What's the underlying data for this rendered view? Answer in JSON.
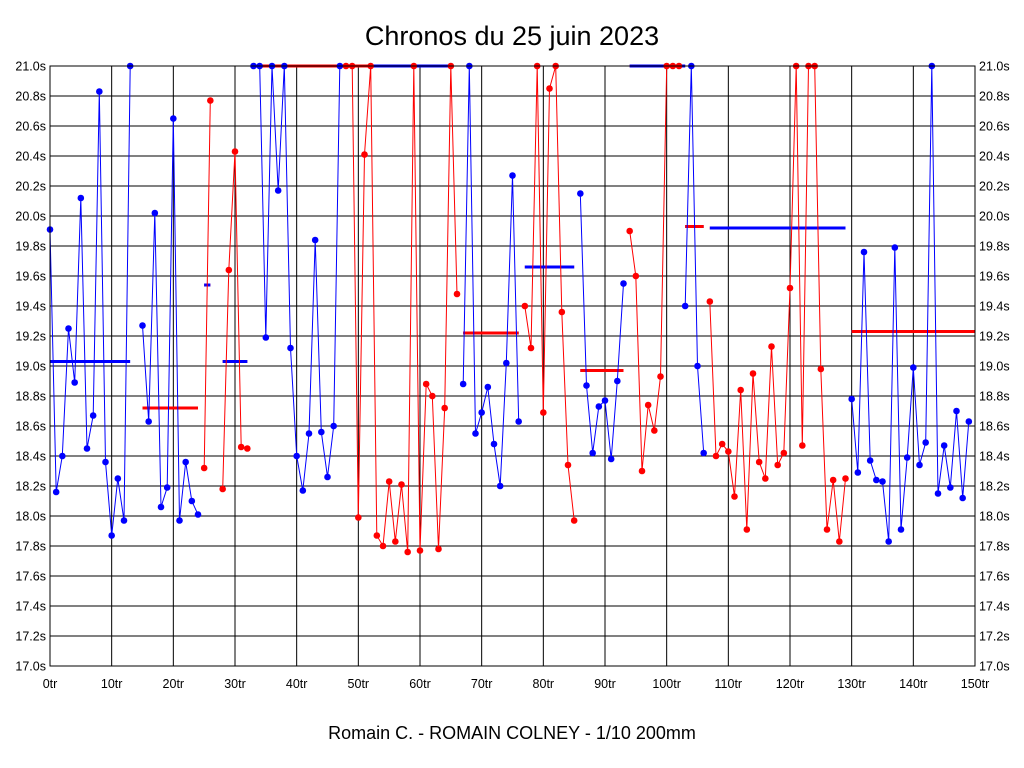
{
  "chart_data": {
    "type": "line",
    "title": "Chronos du 25 juin 2023",
    "footer": "Romain C. - ROMAIN COLNEY - 1/10 200mm",
    "x_unit": "tr",
    "y_unit": "s",
    "xlim": [
      0,
      150
    ],
    "ylim": [
      17.0,
      21.0
    ],
    "x_ticks": [
      0,
      10,
      20,
      30,
      40,
      50,
      60,
      70,
      80,
      90,
      100,
      110,
      120,
      130,
      140,
      150
    ],
    "x_tick_labels": [
      "0tr",
      "10tr",
      "20tr",
      "30tr",
      "40tr",
      "50tr",
      "60tr",
      "70tr",
      "80tr",
      "90tr",
      "100tr",
      "110tr",
      "120tr",
      "130tr",
      "140tr",
      "150tr"
    ],
    "y_ticks": [
      17.0,
      17.2,
      17.4,
      17.6,
      17.8,
      18.0,
      18.2,
      18.4,
      18.6,
      18.8,
      19.0,
      19.2,
      19.4,
      19.6,
      19.8,
      20.0,
      20.2,
      20.4,
      20.6,
      20.8,
      21.0
    ],
    "y_tick_labels": [
      "17.0s",
      "17.2s",
      "17.4s",
      "17.6s",
      "17.8s",
      "18.0s",
      "18.2s",
      "18.4s",
      "18.6s",
      "18.8s",
      "19.0s",
      "19.2s",
      "19.4s",
      "19.6s",
      "19.8s",
      "20.0s",
      "20.2s",
      "20.4s",
      "20.6s",
      "20.8s",
      "21.0s"
    ],
    "colors": {
      "blue": "#0000ff",
      "red": "#ff0000"
    },
    "stints": [
      {
        "color": "blue",
        "avg": 19.03,
        "x_start": 0,
        "x_end": 13,
        "laps": [
          [
            0,
            19.91
          ],
          [
            1,
            18.16
          ],
          [
            2,
            18.4
          ],
          [
            3,
            19.25
          ],
          [
            4,
            18.89
          ],
          [
            5,
            20.12
          ],
          [
            6,
            18.45
          ],
          [
            7,
            18.67
          ],
          [
            8,
            20.83
          ],
          [
            9,
            18.36
          ],
          [
            10,
            17.87
          ],
          [
            11,
            18.25
          ],
          [
            12,
            17.97
          ],
          [
            13,
            21.0
          ]
        ]
      },
      {
        "color": "blue",
        "avg": 18.72,
        "x_start": 15,
        "x_end": 24,
        "laps": [
          [
            15,
            19.27
          ],
          [
            16,
            18.63
          ],
          [
            17,
            20.02
          ],
          [
            18,
            18.06
          ],
          [
            19,
            18.19
          ],
          [
            20,
            20.65
          ],
          [
            21,
            17.97
          ],
          [
            22,
            18.36
          ],
          [
            23,
            18.1
          ],
          [
            24,
            18.01
          ]
        ]
      },
      {
        "color": "red",
        "avg": 18.72,
        "x_start": 15,
        "x_end": 24,
        "line_only": true,
        "laps": []
      },
      {
        "color": "red",
        "avg": 19.54,
        "x_start": 25,
        "x_end": 26,
        "laps": [
          [
            25,
            18.32
          ],
          [
            26,
            20.77
          ]
        ]
      },
      {
        "color": "blue",
        "avg": 19.54,
        "x_start": 25,
        "x_end": 26,
        "line_only": true,
        "laps": []
      },
      {
        "color": "red",
        "avg": 19.03,
        "x_start": 28,
        "x_end": 32,
        "laps": [
          [
            28,
            18.18
          ],
          [
            29,
            19.64
          ],
          [
            30,
            20.43
          ],
          [
            31,
            18.46
          ],
          [
            32,
            18.45
          ]
        ]
      },
      {
        "color": "blue",
        "avg": 19.03,
        "x_start": 28,
        "x_end": 32,
        "line_only": true,
        "laps": []
      },
      {
        "color": "blue",
        "avg": 21.0,
        "x_start": 33,
        "x_end": 47,
        "laps": [
          [
            33,
            21.0
          ],
          [
            34,
            21.0
          ],
          [
            35,
            19.19
          ],
          [
            36,
            21.0
          ],
          [
            37,
            20.17
          ],
          [
            38,
            21.0
          ],
          [
            39,
            19.12
          ],
          [
            40,
            18.4
          ],
          [
            41,
            18.17
          ],
          [
            42,
            18.55
          ],
          [
            43,
            19.84
          ],
          [
            44,
            18.56
          ],
          [
            45,
            18.26
          ],
          [
            46,
            18.6
          ],
          [
            47,
            21.0
          ]
        ]
      },
      {
        "color": "red",
        "avg": 21.0,
        "x_start": 33,
        "x_end": 47,
        "line_only": true,
        "laps": []
      },
      {
        "color": "red",
        "avg": 21.0,
        "x_start": 47,
        "x_end": 52,
        "laps": [
          [
            48,
            21.0
          ],
          [
            49,
            21.0
          ],
          [
            50,
            17.99
          ],
          [
            51,
            20.41
          ],
          [
            52,
            21.0
          ],
          [
            53,
            17.87
          ],
          [
            54,
            17.8
          ],
          [
            55,
            18.23
          ],
          [
            56,
            17.83
          ],
          [
            57,
            18.21
          ],
          [
            58,
            17.76
          ],
          [
            59,
            21.0
          ],
          [
            60,
            17.77
          ],
          [
            61,
            18.88
          ],
          [
            62,
            18.8
          ],
          [
            63,
            17.78
          ],
          [
            64,
            18.72
          ],
          [
            65,
            21.0
          ],
          [
            66,
            19.48
          ]
        ]
      },
      {
        "color": "blue",
        "avg": 21.0,
        "x_start": 52,
        "x_end": 65,
        "line_only": true,
        "laps": []
      },
      {
        "color": "blue",
        "avg": 19.22,
        "x_start": 67,
        "x_end": 76,
        "laps": [
          [
            67,
            18.88
          ],
          [
            68,
            21.0
          ],
          [
            69,
            18.55
          ],
          [
            70,
            18.69
          ],
          [
            71,
            18.86
          ],
          [
            72,
            18.48
          ],
          [
            73,
            18.2
          ],
          [
            74,
            19.02
          ],
          [
            75,
            20.27
          ],
          [
            76,
            18.63
          ]
        ]
      },
      {
        "color": "red",
        "avg": 19.22,
        "x_start": 67,
        "x_end": 76,
        "line_only": true,
        "laps": []
      },
      {
        "color": "red",
        "avg": 19.66,
        "x_start": 77,
        "x_end": 85,
        "laps": [
          [
            77,
            19.4
          ],
          [
            78,
            19.12
          ],
          [
            79,
            21.0
          ],
          [
            80,
            18.69
          ],
          [
            81,
            20.85
          ],
          [
            82,
            21.0
          ],
          [
            83,
            19.36
          ],
          [
            84,
            18.34
          ],
          [
            85,
            17.97
          ]
        ]
      },
      {
        "color": "blue",
        "avg": 19.66,
        "x_start": 77,
        "x_end": 85,
        "line_only": true,
        "laps": []
      },
      {
        "color": "blue",
        "avg": 18.97,
        "x_start": 86,
        "x_end": 93,
        "laps": [
          [
            86,
            20.15
          ],
          [
            87,
            18.87
          ],
          [
            88,
            18.42
          ],
          [
            89,
            18.73
          ],
          [
            90,
            18.77
          ],
          [
            91,
            18.38
          ],
          [
            92,
            18.9
          ],
          [
            93,
            19.55
          ]
        ]
      },
      {
        "color": "red",
        "avg": 18.97,
        "x_start": 86,
        "x_end": 93,
        "line_only": true,
        "laps": []
      },
      {
        "color": "red",
        "avg": 21.0,
        "x_start": 94,
        "x_end": 103,
        "laps": [
          [
            94,
            19.9
          ],
          [
            95,
            19.6
          ],
          [
            96,
            18.3
          ],
          [
            97,
            18.74
          ],
          [
            98,
            18.57
          ],
          [
            99,
            18.93
          ],
          [
            100,
            21.0
          ],
          [
            101,
            21.0
          ],
          [
            102,
            21.0
          ]
        ]
      },
      {
        "color": "blue",
        "avg": 21.0,
        "x_start": 94,
        "x_end": 103,
        "line_only": true,
        "laps": []
      },
      {
        "color": "blue",
        "avg": 19.93,
        "x_start": 103,
        "x_end": 106,
        "laps": [
          [
            103,
            19.4
          ],
          [
            104,
            21.0
          ],
          [
            105,
            19.0
          ],
          [
            106,
            18.42
          ]
        ]
      },
      {
        "color": "red",
        "avg": 19.93,
        "x_start": 103,
        "x_end": 106,
        "line_only": true,
        "laps": []
      },
      {
        "color": "red",
        "avg": 19.92,
        "x_start": 107,
        "x_end": 129,
        "laps": [
          [
            107,
            19.43
          ],
          [
            108,
            18.4
          ],
          [
            109,
            18.48
          ],
          [
            110,
            18.43
          ],
          [
            111,
            18.13
          ],
          [
            112,
            18.84
          ],
          [
            113,
            17.91
          ],
          [
            114,
            18.95
          ],
          [
            115,
            18.36
          ],
          [
            116,
            18.25
          ],
          [
            117,
            19.13
          ],
          [
            118,
            18.34
          ],
          [
            119,
            18.42
          ],
          [
            120,
            19.52
          ],
          [
            121,
            21.0
          ],
          [
            122,
            18.47
          ],
          [
            123,
            21.0
          ],
          [
            124,
            21.0
          ],
          [
            125,
            18.98
          ],
          [
            126,
            17.91
          ],
          [
            127,
            18.24
          ],
          [
            128,
            17.83
          ],
          [
            129,
            18.25
          ]
        ]
      },
      {
        "color": "blue",
        "avg": 19.92,
        "x_start": 107,
        "x_end": 129,
        "line_only": true,
        "laps": []
      },
      {
        "color": "blue",
        "avg": 19.23,
        "x_start": 130,
        "x_end": 150,
        "laps": [
          [
            130,
            18.78
          ],
          [
            131,
            18.29
          ],
          [
            132,
            19.76
          ],
          [
            133,
            18.37
          ],
          [
            134,
            18.24
          ],
          [
            135,
            18.23
          ],
          [
            136,
            17.83
          ],
          [
            137,
            19.79
          ],
          [
            138,
            17.91
          ],
          [
            139,
            18.39
          ],
          [
            140,
            18.99
          ],
          [
            141,
            18.34
          ],
          [
            142,
            18.49
          ],
          [
            143,
            21.0
          ],
          [
            144,
            18.15
          ],
          [
            145,
            18.47
          ],
          [
            146,
            18.19
          ],
          [
            147,
            18.7
          ],
          [
            148,
            18.12
          ],
          [
            149,
            18.63
          ]
        ]
      },
      {
        "color": "red",
        "avg": 19.23,
        "x_start": 130,
        "x_end": 150,
        "line_only": true,
        "laps": []
      }
    ]
  }
}
